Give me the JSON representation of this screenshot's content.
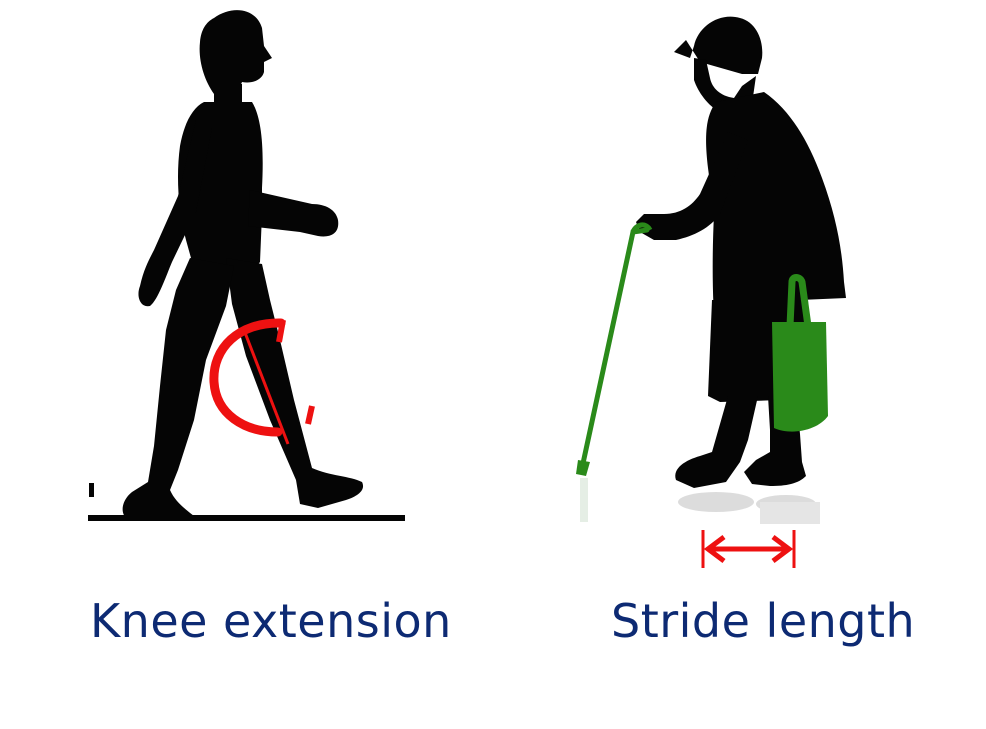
{
  "colors": {
    "silhouette": "#050505",
    "cane": "#2a8a1a",
    "bag": "#2a8a1a",
    "annotation": "#ee1111",
    "caption": "#0d2a73"
  },
  "captions": {
    "left": "Knee extension",
    "right": "Stride length"
  },
  "figures": {
    "left": "walking-man-silhouette",
    "right": "elderly-woman-with-cane-silhouette"
  }
}
